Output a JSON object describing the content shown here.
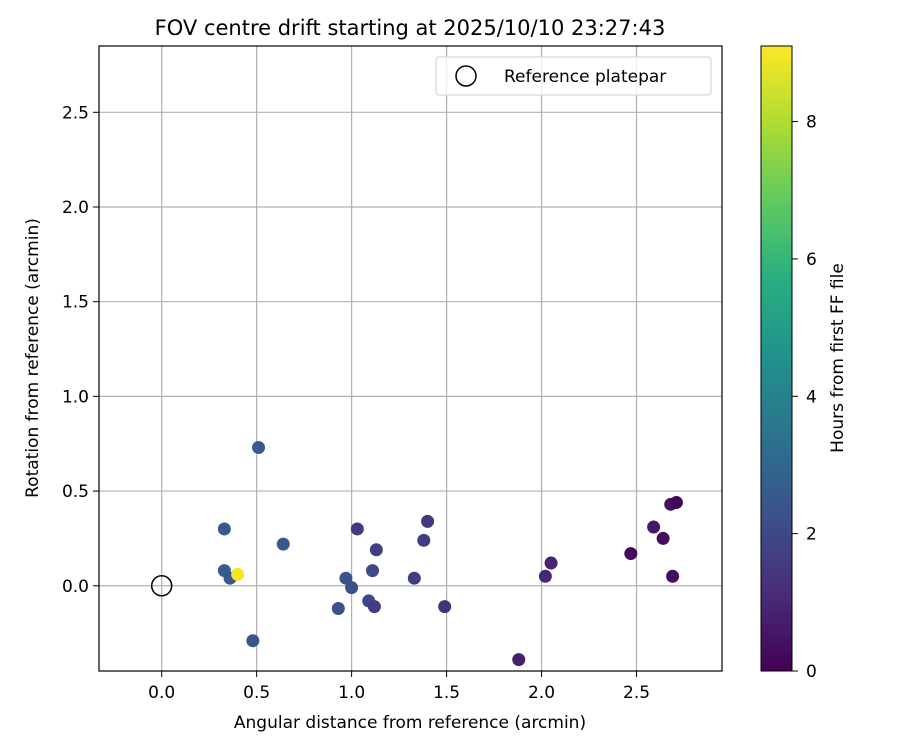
{
  "chart_data": {
    "type": "scatter",
    "title": "FOV centre drift starting at 2025/10/10 23:27:43",
    "xlabel": "Angular distance from reference (arcmin)",
    "ylabel": "Rotation from reference (arcmin)",
    "xlim": [
      -0.33,
      2.95
    ],
    "ylim": [
      -0.45,
      2.85
    ],
    "xticks": [
      0.0,
      0.5,
      1.0,
      1.5,
      2.0,
      2.5
    ],
    "xtick_labels": [
      "0.0",
      "0.5",
      "1.0",
      "1.5",
      "2.0",
      "2.5"
    ],
    "yticks": [
      0.0,
      0.5,
      1.0,
      1.5,
      2.0,
      2.5
    ],
    "ytick_labels": [
      "0.0",
      "0.5",
      "1.0",
      "1.5",
      "2.0",
      "2.5"
    ],
    "grid": true,
    "legend": {
      "position": "top-right",
      "entries": [
        "Reference platepar"
      ]
    },
    "reference_point": {
      "x": 0.0,
      "y": 0.0,
      "label": "Reference platepar"
    },
    "colorbar": {
      "label": "Hours from first FF file",
      "colormap": "viridis",
      "range": [
        0,
        9.1
      ],
      "ticks": [
        0,
        2,
        4,
        6,
        8
      ],
      "tick_labels": [
        "0",
        "2",
        "4",
        "6",
        "8"
      ]
    },
    "points": [
      {
        "x": 0.51,
        "y": 0.73,
        "hours": 2.6
      },
      {
        "x": 0.33,
        "y": 0.3,
        "hours": 2.6
      },
      {
        "x": 0.64,
        "y": 0.22,
        "hours": 2.6
      },
      {
        "x": 0.33,
        "y": 0.08,
        "hours": 2.6
      },
      {
        "x": 0.36,
        "y": 0.04,
        "hours": 2.5
      },
      {
        "x": 0.4,
        "y": 0.06,
        "hours": 9.0
      },
      {
        "x": 0.48,
        "y": -0.29,
        "hours": 2.5
      },
      {
        "x": 0.93,
        "y": -0.12,
        "hours": 2.2
      },
      {
        "x": 0.97,
        "y": 0.04,
        "hours": 2.3
      },
      {
        "x": 1.0,
        "y": -0.01,
        "hours": 2.2
      },
      {
        "x": 1.03,
        "y": 0.3,
        "hours": 1.5
      },
      {
        "x": 1.09,
        "y": -0.08,
        "hours": 1.9
      },
      {
        "x": 1.11,
        "y": 0.08,
        "hours": 2.0
      },
      {
        "x": 1.12,
        "y": -0.11,
        "hours": 1.6
      },
      {
        "x": 1.13,
        "y": 0.19,
        "hours": 1.7
      },
      {
        "x": 1.33,
        "y": 0.04,
        "hours": 1.7
      },
      {
        "x": 1.38,
        "y": 0.24,
        "hours": 1.6
      },
      {
        "x": 1.4,
        "y": 0.34,
        "hours": 1.5
      },
      {
        "x": 1.49,
        "y": -0.11,
        "hours": 1.3
      },
      {
        "x": 1.88,
        "y": -0.39,
        "hours": 0.8
      },
      {
        "x": 2.02,
        "y": 0.05,
        "hours": 1.0
      },
      {
        "x": 2.05,
        "y": 0.12,
        "hours": 0.9
      },
      {
        "x": 2.47,
        "y": 0.17,
        "hours": 0.2
      },
      {
        "x": 2.59,
        "y": 0.31,
        "hours": 0.6
      },
      {
        "x": 2.64,
        "y": 0.25,
        "hours": 0.3
      },
      {
        "x": 2.68,
        "y": 0.43,
        "hours": 0.5
      },
      {
        "x": 2.69,
        "y": 0.05,
        "hours": 0.3
      },
      {
        "x": 2.71,
        "y": 0.44,
        "hours": 0.1
      }
    ]
  }
}
